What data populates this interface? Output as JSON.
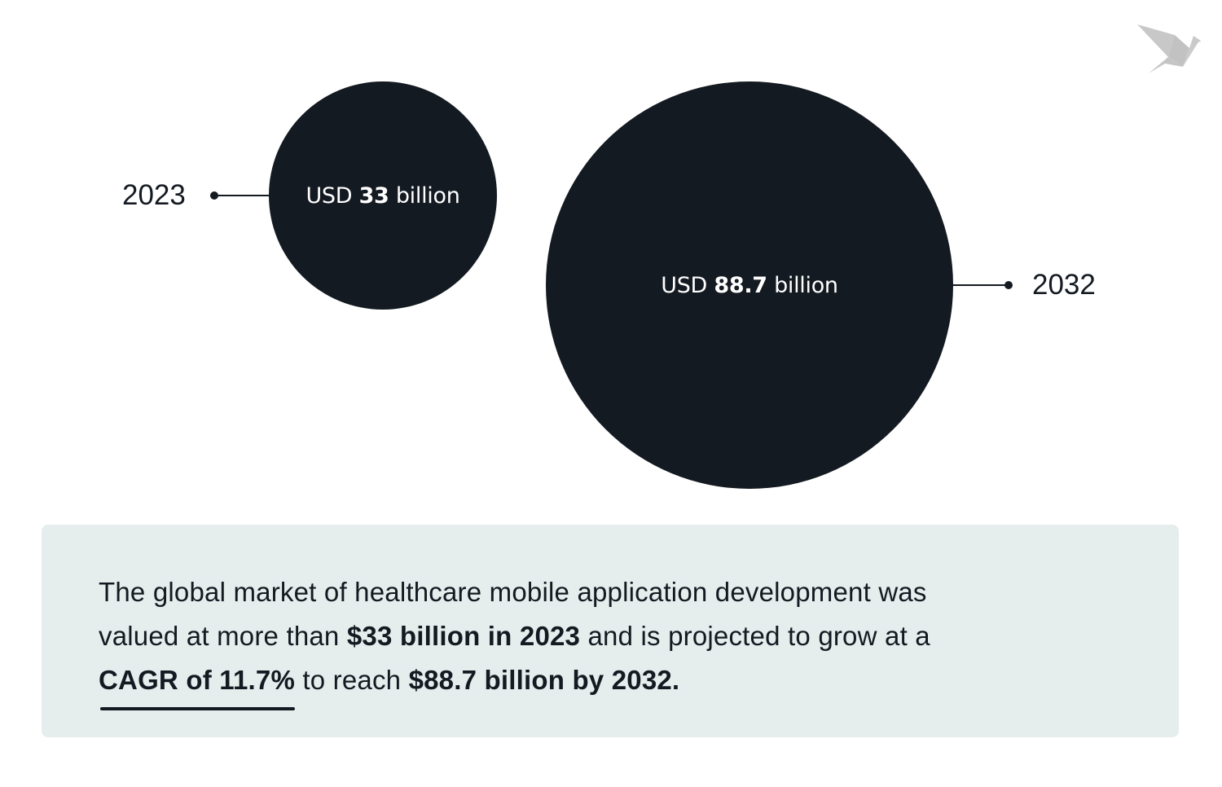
{
  "chart_data": {
    "type": "bubble",
    "unit": "USD billion",
    "points": [
      {
        "year": "2023",
        "label_prefix": "USD",
        "value_text": "33",
        "label_suffix": "billion",
        "value": 33
      },
      {
        "year": "2032",
        "label_prefix": "USD",
        "value_text": "88.7",
        "label_suffix": "billion",
        "value": 88.7
      }
    ],
    "colors": {
      "bubble": "#141a21",
      "panel": "#e5eded",
      "logo": "#c8c8c8"
    }
  },
  "logo": {
    "icon": "origami-bird-icon"
  },
  "summary": {
    "line1": "The global market of healthcare mobile application development was",
    "line2_a": "valued at more than ",
    "line2_b": "$33 billion in 2023",
    "line2_c": " and is projected to grow at a",
    "line3_a": "CAGR of 11.7%",
    "line3_b": " to reach ",
    "line3_c": "$88.7 billion by 2032."
  }
}
